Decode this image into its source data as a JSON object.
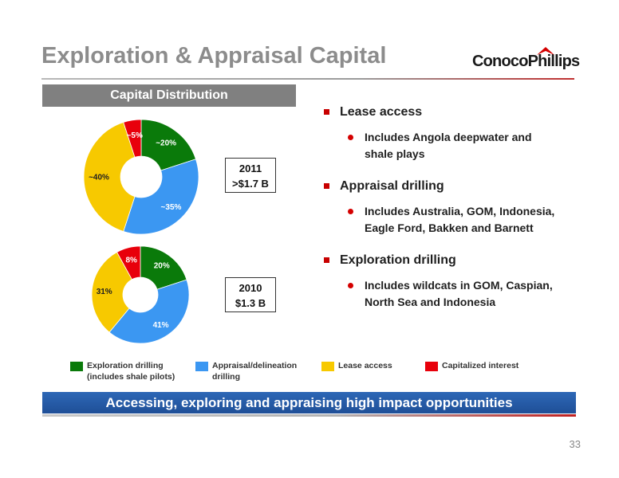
{
  "title": "Exploration & Appraisal Capital",
  "logo": {
    "text": "ConocoPhillips",
    "icon": "conocophillips-logo-mark"
  },
  "capital_header": "Capital Distribution",
  "colors": {
    "exploration": "#0a7a0a",
    "appraisal": "#3b97f2",
    "lease": "#f7c900",
    "capitalized": "#e8000b",
    "banner": "#2458a6"
  },
  "chart_data": [
    {
      "type": "pie",
      "year": "2011",
      "total": ">$1.7 B",
      "categories": [
        "Exploration drilling",
        "Appraisal/delineation drilling",
        "Lease access",
        "Capitalized interest"
      ],
      "values": [
        20,
        35,
        40,
        5
      ],
      "labels": [
        "~20%",
        "~35%",
        "~40%",
        "~5%"
      ]
    },
    {
      "type": "pie",
      "year": "2010",
      "total": "$1.3 B",
      "categories": [
        "Exploration drilling",
        "Appraisal/delineation drilling",
        "Lease access",
        "Capitalized interest"
      ],
      "values": [
        20,
        41,
        31,
        8
      ],
      "labels": [
        "20%",
        "41%",
        "31%",
        "8%"
      ]
    }
  ],
  "bullets": [
    {
      "heading": "Lease access",
      "detail": [
        "Includes Angola deepwater and",
        "shale plays"
      ]
    },
    {
      "heading": "Appraisal drilling",
      "detail": [
        "Includes Australia, GOM, Indonesia,",
        "Eagle Ford, Bakken and Barnett"
      ]
    },
    {
      "heading": "Exploration drilling",
      "detail": [
        "Includes wildcats in GOM, Caspian,",
        "North Sea and Indonesia"
      ]
    }
  ],
  "legend": [
    {
      "lines": [
        "Exploration drilling",
        "(includes shale pilots)"
      ],
      "color": "#0a7a0a"
    },
    {
      "lines": [
        "Appraisal/delineation",
        "drilling"
      ],
      "color": "#3b97f2"
    },
    {
      "lines": [
        "Lease access"
      ],
      "color": "#f7c900"
    },
    {
      "lines": [
        "Capitalized interest"
      ],
      "color": "#e8000b"
    }
  ],
  "banner": "Accessing, exploring and appraising high impact opportunities",
  "page_number": "33"
}
